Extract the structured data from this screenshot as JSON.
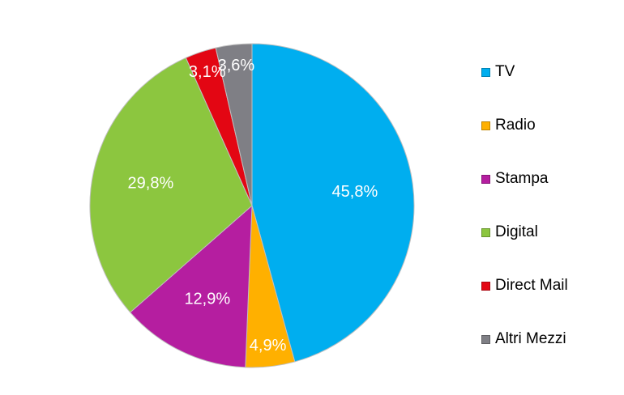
{
  "chart_data": {
    "type": "pie",
    "title": "",
    "categories": [
      "TV",
      "Radio",
      "Stampa",
      "Digital",
      "Direct Mail",
      "Altri Mezzi"
    ],
    "values": [
      45.8,
      4.9,
      12.9,
      29.8,
      3.1,
      3.6
    ],
    "labels": [
      "45,8%",
      "4,9%",
      "12,9%",
      "29,8%",
      "3,1%",
      "3,6%"
    ],
    "colors": [
      "#00aeef",
      "#ffb000",
      "#b51ea0",
      "#8cc63f",
      "#e30613",
      "#7f7f85"
    ],
    "legend_position": "right"
  }
}
